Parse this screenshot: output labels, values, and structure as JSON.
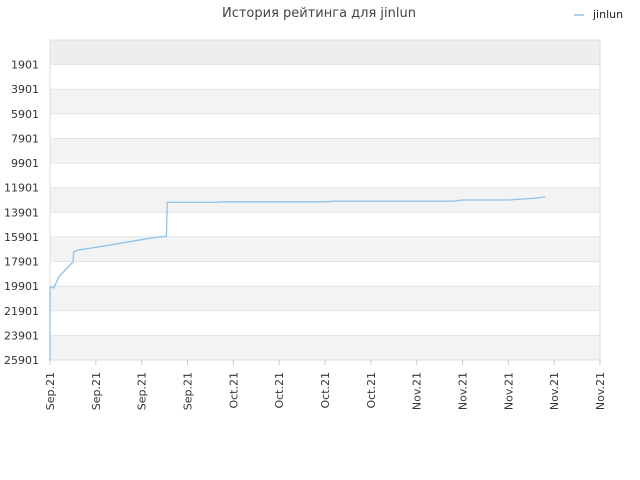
{
  "chart_data": {
    "type": "line",
    "title": "История рейтинга для jinlun",
    "legend": {
      "position": "top-right",
      "entries": [
        "jinlun"
      ]
    },
    "grid": true,
    "y_inverted": true,
    "ylim": [
      -99,
      25901
    ],
    "y_ticks": [
      "1901",
      "3901",
      "5901",
      "7901",
      "9901",
      "11901",
      "13901",
      "15901",
      "17901",
      "19901",
      "21901",
      "23901",
      "25901"
    ],
    "x_ticks": [
      "Sep.21",
      "Sep.21",
      "Sep.21",
      "Sep.21",
      "Oct.21",
      "Oct.21",
      "Oct.21",
      "Oct.21",
      "Nov.21",
      "Nov.21",
      "Nov.21",
      "Nov.21",
      "Nov.21"
    ],
    "series": [
      {
        "name": "jinlun",
        "color": "#8ec3ec",
        "points": [
          [
            0.0,
            25901
          ],
          [
            0.0,
            20000
          ],
          [
            0.2,
            19950
          ],
          [
            0.4,
            20050
          ],
          [
            1.0,
            19100
          ],
          [
            2.5,
            17950
          ],
          [
            2.6,
            17100
          ],
          [
            3.2,
            16950
          ],
          [
            5.0,
            16750
          ],
          [
            7.0,
            16500
          ],
          [
            9.0,
            16250
          ],
          [
            11.0,
            16000
          ],
          [
            12.7,
            15850
          ],
          [
            12.8,
            13100
          ],
          [
            14.0,
            13100
          ],
          [
            18.0,
            13100
          ],
          [
            19.0,
            13050
          ],
          [
            25.0,
            13050
          ],
          [
            30.0,
            13050
          ],
          [
            31.0,
            13000
          ],
          [
            35.0,
            13000
          ],
          [
            40.0,
            13000
          ],
          [
            44.0,
            13000
          ],
          [
            45.0,
            12900
          ],
          [
            50.0,
            12900
          ],
          [
            51.0,
            12850
          ],
          [
            53.0,
            12750
          ],
          [
            54.0,
            12650
          ]
        ]
      }
    ]
  },
  "colors": {
    "band_odd": "#f3f3f3",
    "band_even": "#ffffff",
    "grid": "#e4e4e4",
    "line": "#8ec3ec"
  }
}
